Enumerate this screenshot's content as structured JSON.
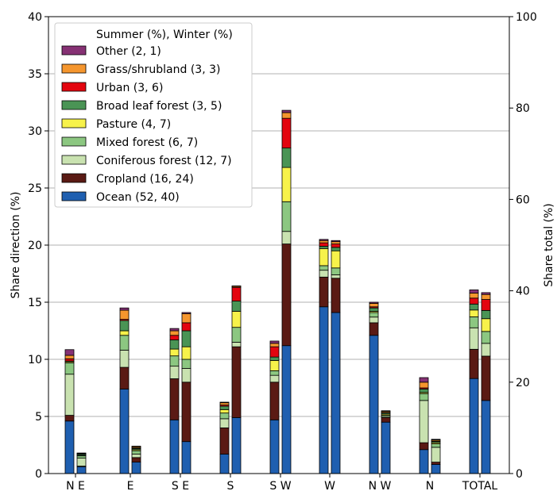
{
  "chart_data": {
    "type": "bar",
    "stacked": true,
    "categories": [
      "N E",
      "E",
      "S E",
      "S",
      "S W",
      "W",
      "N W",
      "N",
      "TOTAL"
    ],
    "bar_groups": [
      "Summer",
      "Winter"
    ],
    "ylabel": "Share direction (%)",
    "ylim": [
      0,
      40
    ],
    "yticks": [
      0,
      5,
      10,
      15,
      20,
      25,
      30,
      35,
      40
    ],
    "y2label": "Share total (%)",
    "y2lim": [
      0,
      100
    ],
    "y2ticks": [
      0,
      20,
      40,
      60,
      80,
      100
    ],
    "total_scale_note": "TOTAL bars are read on the right axis",
    "grid": true,
    "legend": {
      "title": "Summer (%), Winter (%)",
      "placement": "top-left"
    },
    "series": [
      {
        "name": "Ocean (52, 40)",
        "color": "#1f5fb0",
        "summer": [
          4.6,
          7.4,
          4.7,
          1.7,
          4.7,
          14.6,
          12.1,
          2.1,
          20.8
        ],
        "winter": [
          0.6,
          1.0,
          2.8,
          4.9,
          11.2,
          14.1,
          4.5,
          0.8,
          16.0
        ]
      },
      {
        "name": "Cropland (16, 24)",
        "color": "#5a1a14",
        "summer": [
          0.5,
          1.9,
          3.6,
          2.3,
          3.3,
          2.6,
          1.1,
          0.6,
          6.4
        ],
        "winter": [
          0.05,
          0.4,
          5.2,
          6.2,
          8.9,
          3.0,
          0.4,
          0.2,
          9.7
        ]
      },
      {
        "name": "Coniferous forest (12, 7)",
        "color": "#c9e2b0",
        "summer": [
          3.6,
          1.5,
          1.1,
          0.8,
          0.6,
          0.6,
          0.5,
          3.7,
          4.7
        ],
        "winter": [
          0.7,
          0.3,
          1.2,
          0.4,
          1.1,
          0.3,
          0.1,
          1.3,
          2.8
        ]
      },
      {
        "name": "Mixed forest (6, 7)",
        "color": "#8cc781",
        "summer": [
          1.0,
          1.3,
          0.9,
          0.5,
          0.4,
          0.4,
          0.4,
          0.6,
          2.4
        ],
        "winter": [
          0.2,
          0.3,
          0.8,
          1.3,
          2.6,
          0.6,
          0.1,
          0.3,
          2.6
        ]
      },
      {
        "name": "Pasture (4, 7)",
        "color": "#f7f24a",
        "summer": [
          0.1,
          0.4,
          0.6,
          0.3,
          0.9,
          1.5,
          0.1,
          0.1,
          1.5
        ],
        "winter": [
          0.05,
          0.1,
          1.1,
          1.4,
          3.0,
          1.5,
          0.1,
          0.1,
          2.8
        ]
      },
      {
        "name": "Broad leaf forest (3, 5)",
        "color": "#4a9455",
        "summer": [
          0.05,
          0.9,
          0.8,
          0.3,
          0.3,
          0.2,
          0.3,
          0.3,
          1.3
        ],
        "winter": [
          0.1,
          0.1,
          1.4,
          0.9,
          1.7,
          0.3,
          0.1,
          0.1,
          1.8
        ]
      },
      {
        "name": "Urban (3, 6)",
        "color": "#e3050f",
        "summer": [
          0.2,
          0.1,
          0.4,
          0.1,
          0.9,
          0.3,
          0.1,
          0.1,
          1.3
        ],
        "winter": [
          0.02,
          0.05,
          0.7,
          1.2,
          2.6,
          0.3,
          0.05,
          0.05,
          2.4
        ]
      },
      {
        "name": "Grass/shrubland (3, 3)",
        "color": "#f5962e",
        "summer": [
          0.3,
          0.8,
          0.4,
          0.2,
          0.3,
          0.2,
          0.3,
          0.5,
          1.1
        ],
        "winter": [
          0.05,
          0.1,
          0.8,
          0.1,
          0.5,
          0.2,
          0.1,
          0.1,
          1.1
        ]
      },
      {
        "name": "Other (2, 1)",
        "color": "#863174",
        "summer": [
          0.5,
          0.2,
          0.2,
          0.05,
          0.2,
          0.1,
          0.1,
          0.4,
          0.7
        ],
        "winter": [
          0.03,
          0.05,
          0.1,
          0.03,
          0.2,
          0.1,
          0.05,
          0.05,
          0.4
        ]
      }
    ]
  }
}
